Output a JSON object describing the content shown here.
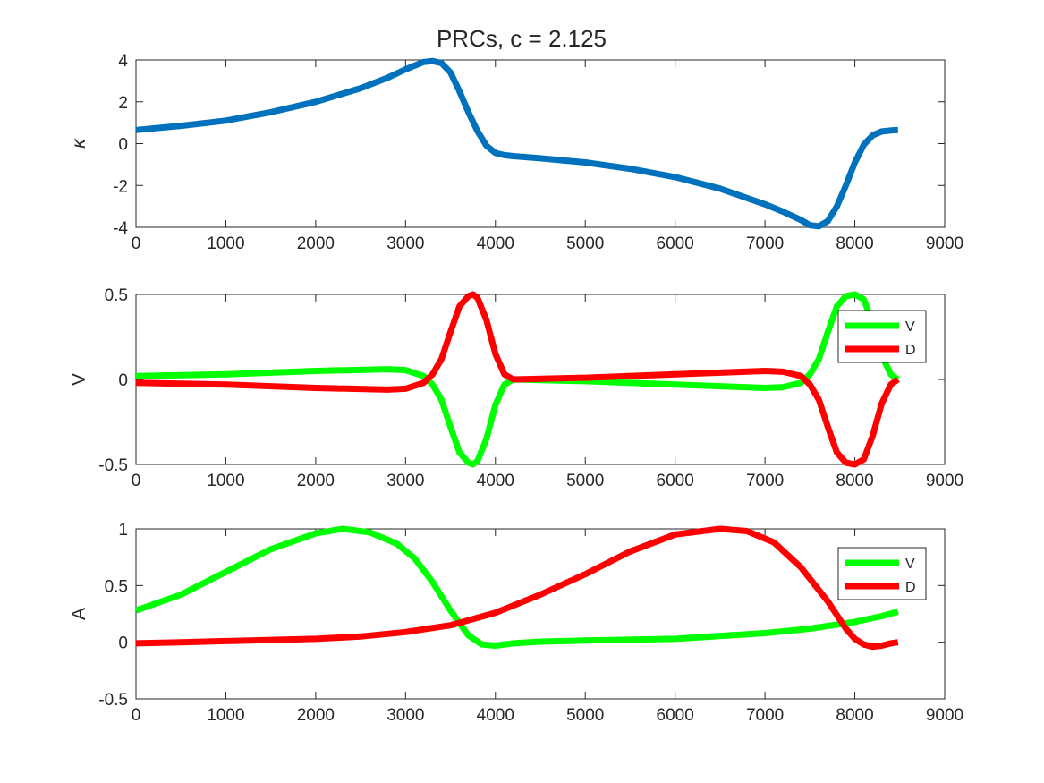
{
  "figure": {
    "title": "PRCs, c = 2.125"
  },
  "chart_data": [
    {
      "type": "line",
      "title": "PRCs, c = 2.125",
      "xlabel": "",
      "ylabel": "κ",
      "xlim": [
        0,
        9000
      ],
      "ylim": [
        -4,
        4
      ],
      "xticks": [
        0,
        1000,
        2000,
        3000,
        4000,
        5000,
        6000,
        7000,
        8000,
        9000
      ],
      "yticks": [
        -4,
        -2,
        0,
        2,
        4
      ],
      "grid": false,
      "legend": null,
      "series": [
        {
          "color": "#0072BD",
          "x": [
            0,
            500,
            1000,
            1500,
            2000,
            2500,
            2800,
            3000,
            3200,
            3300,
            3400,
            3500,
            3600,
            3700,
            3800,
            3900,
            4000,
            4100,
            4200,
            4500,
            5000,
            5500,
            6000,
            6500,
            7000,
            7200,
            7400,
            7500,
            7600,
            7700,
            7800,
            7900,
            8000,
            8100,
            8200,
            8300,
            8400,
            8480
          ],
          "y": [
            0.65,
            0.85,
            1.1,
            1.5,
            2.0,
            2.65,
            3.15,
            3.55,
            3.9,
            3.95,
            3.85,
            3.4,
            2.5,
            1.5,
            0.6,
            -0.1,
            -0.45,
            -0.55,
            -0.6,
            -0.7,
            -0.9,
            -1.2,
            -1.6,
            -2.15,
            -2.9,
            -3.25,
            -3.65,
            -3.9,
            -3.95,
            -3.7,
            -3.0,
            -2.0,
            -0.9,
            -0.05,
            0.4,
            0.58,
            0.63,
            0.65
          ]
        }
      ]
    },
    {
      "type": "line",
      "xlabel": "",
      "ylabel": "V",
      "xlim": [
        0,
        9000
      ],
      "ylim": [
        -0.5,
        0.5
      ],
      "xticks": [
        0,
        1000,
        2000,
        3000,
        4000,
        5000,
        6000,
        7000,
        8000,
        9000
      ],
      "yticks": [
        -0.5,
        0,
        0.5
      ],
      "grid": false,
      "legend": "top-right",
      "series": [
        {
          "name": "V",
          "color": "#00ff00",
          "x": [
            0,
            1000,
            2000,
            2800,
            3000,
            3200,
            3300,
            3400,
            3500,
            3600,
            3700,
            3750,
            3800,
            3900,
            4000,
            4100,
            4200,
            5000,
            6000,
            7000,
            7200,
            7400,
            7500,
            7600,
            7700,
            7800,
            7900,
            8000,
            8100,
            8200,
            8300,
            8400,
            8480
          ],
          "y": [
            0.02,
            0.03,
            0.05,
            0.06,
            0.055,
            0.02,
            -0.03,
            -0.12,
            -0.28,
            -0.43,
            -0.49,
            -0.5,
            -0.48,
            -0.35,
            -0.15,
            -0.03,
            0.0,
            -0.01,
            -0.03,
            -0.05,
            -0.045,
            -0.02,
            0.03,
            0.12,
            0.28,
            0.43,
            0.49,
            0.5,
            0.47,
            0.33,
            0.14,
            0.03,
            0.0
          ]
        },
        {
          "name": "D",
          "color": "#ff0000",
          "x": [
            0,
            1000,
            2000,
            2800,
            3000,
            3200,
            3300,
            3400,
            3500,
            3600,
            3700,
            3750,
            3800,
            3900,
            4000,
            4100,
            4200,
            5000,
            6000,
            7000,
            7200,
            7400,
            7500,
            7600,
            7700,
            7800,
            7900,
            8000,
            8100,
            8200,
            8300,
            8400,
            8480
          ],
          "y": [
            -0.02,
            -0.03,
            -0.05,
            -0.06,
            -0.055,
            -0.02,
            0.03,
            0.12,
            0.28,
            0.43,
            0.49,
            0.5,
            0.48,
            0.35,
            0.15,
            0.03,
            0.0,
            0.01,
            0.03,
            0.05,
            0.045,
            0.02,
            -0.03,
            -0.12,
            -0.28,
            -0.43,
            -0.49,
            -0.5,
            -0.47,
            -0.33,
            -0.14,
            -0.03,
            0.0
          ]
        }
      ]
    },
    {
      "type": "line",
      "xlabel": "",
      "ylabel": "A",
      "xlim": [
        0,
        9000
      ],
      "ylim": [
        -0.5,
        1
      ],
      "xticks": [
        0,
        1000,
        2000,
        3000,
        4000,
        5000,
        6000,
        7000,
        8000,
        9000
      ],
      "yticks": [
        -0.5,
        0,
        0.5,
        1
      ],
      "grid": false,
      "legend": "top-right",
      "series": [
        {
          "name": "V",
          "color": "#00ff00",
          "x": [
            0,
            500,
            1000,
            1500,
            2000,
            2300,
            2600,
            2900,
            3100,
            3300,
            3500,
            3700,
            3850,
            4000,
            4200,
            4500,
            5000,
            6000,
            7000,
            7500,
            8000,
            8300,
            8480
          ],
          "y": [
            0.28,
            0.42,
            0.62,
            0.82,
            0.96,
            1.0,
            0.97,
            0.87,
            0.74,
            0.53,
            0.28,
            0.06,
            -0.02,
            -0.03,
            -0.01,
            0.005,
            0.015,
            0.03,
            0.08,
            0.12,
            0.18,
            0.23,
            0.27
          ]
        },
        {
          "name": "D",
          "color": "#ff0000",
          "x": [
            0,
            500,
            1000,
            1500,
            2000,
            2500,
            3000,
            3500,
            4000,
            4500,
            5000,
            5500,
            6000,
            6500,
            6800,
            7100,
            7400,
            7700,
            7900,
            8000,
            8100,
            8200,
            8300,
            8400,
            8480
          ],
          "y": [
            -0.01,
            0.0,
            0.01,
            0.02,
            0.03,
            0.05,
            0.09,
            0.15,
            0.26,
            0.42,
            0.6,
            0.8,
            0.95,
            1.0,
            0.98,
            0.88,
            0.66,
            0.36,
            0.12,
            0.03,
            -0.02,
            -0.04,
            -0.03,
            -0.01,
            0.0
          ]
        }
      ]
    }
  ]
}
